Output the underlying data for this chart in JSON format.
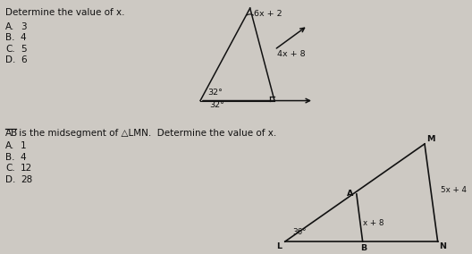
{
  "bg_color": "#cdc9c3",
  "title1": "Determine the value of x.",
  "choices1": [
    [
      "A.",
      "3"
    ],
    [
      "B.",
      "4"
    ],
    [
      "C.",
      "5"
    ],
    [
      "D.",
      "6"
    ]
  ],
  "label1_top": "6x + 2",
  "label1_right": "4x + 8",
  "label1_angle1": "32°",
  "label1_angle2": "32°",
  "title2_overline": "AB",
  "title2_rest": " is the midsegment of △LMN.  Determine the value of x.",
  "choices2": [
    [
      "A.",
      "1"
    ],
    [
      "B.",
      "4"
    ],
    [
      "C.",
      "12"
    ],
    [
      "D.",
      "28"
    ]
  ],
  "tri2_L": "L",
  "tri2_M": "M",
  "tri2_N": "N",
  "tri2_A": "A",
  "tri2_B": "B",
  "tri2_angle": "36°",
  "tri2_mid1": "x + 8",
  "tri2_mid2": "5x + 4",
  "text_color": "#111111",
  "line_color": "#111111"
}
